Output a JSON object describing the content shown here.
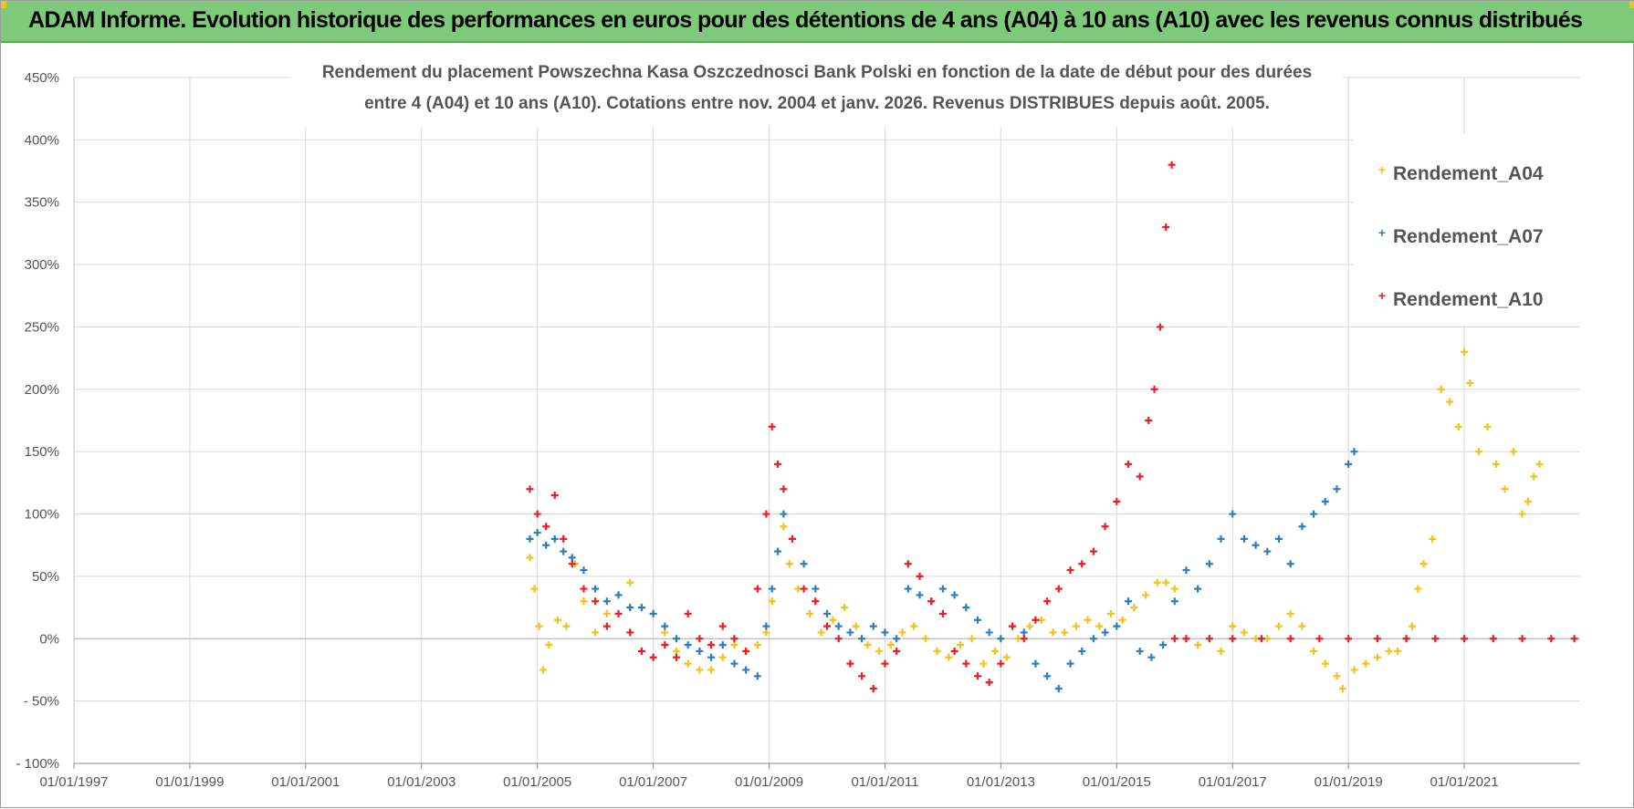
{
  "banner": {
    "title": "ADAM Informe. Evolution historique des performances en euros pour des détentions de 4 ans (A04) à 10 ans (A10) avec les revenus connus distribués"
  },
  "colors": {
    "banner": "#7fc97a",
    "A04": "#f5c21b",
    "A07": "#2f7cc0",
    "A10": "#ee1c25"
  },
  "chart_data": {
    "type": "scatter",
    "title_line1": "Rendement du placement Powszechna Kasa Oszczednosci Bank Polski en fonction de la date de début pour des durées",
    "title_line2": "entre 4 (A04) et 10 ans (A10).  Cotations entre nov. 2004 et janv. 2026. Revenus DISTRIBUES depuis août. 2005.",
    "x_unit": "year",
    "xlim": [
      1997.0,
      2023.0
    ],
    "ylim": [
      -100,
      450
    ],
    "y_ticks": [
      -100,
      -50,
      0,
      50,
      100,
      150,
      200,
      250,
      300,
      350,
      400,
      450
    ],
    "y_tick_labels": [
      "- 100%",
      "- 50%",
      "0%",
      "50%",
      "100%",
      "150%",
      "200%",
      "250%",
      "300%",
      "350%",
      "400%",
      "450%"
    ],
    "x_ticks": [
      1997,
      1999,
      2001,
      2003,
      2005,
      2007,
      2009,
      2011,
      2013,
      2015,
      2017,
      2019,
      2021
    ],
    "x_tick_labels": [
      "01/01/1997",
      "01/01/1999",
      "01/01/2001",
      "01/01/2003",
      "01/01/2005",
      "01/01/2007",
      "01/01/2009",
      "01/01/2011",
      "01/01/2013",
      "01/01/2015",
      "01/01/2017",
      "01/01/2019",
      "01/01/2021"
    ],
    "legend": [
      "Rendement_A04",
      "Rendement_A07",
      "Rendement_A10"
    ],
    "series": [
      {
        "name": "Rendement_A04",
        "x": [
          2004.87,
          2004.95,
          2005.03,
          2005.1,
          2005.2,
          2005.35,
          2005.5,
          2005.65,
          2005.8,
          2006.0,
          2006.2,
          2006.4,
          2006.6,
          2006.8,
          2007.0,
          2007.2,
          2007.4,
          2007.6,
          2007.8,
          2008.0,
          2008.2,
          2008.4,
          2008.6,
          2008.8,
          2008.95,
          2009.05,
          2009.15,
          2009.25,
          2009.35,
          2009.5,
          2009.7,
          2009.9,
          2010.1,
          2010.3,
          2010.5,
          2010.7,
          2010.9,
          2011.1,
          2011.3,
          2011.5,
          2011.7,
          2011.9,
          2012.1,
          2012.3,
          2012.5,
          2012.7,
          2012.9,
          2013.1,
          2013.3,
          2013.5,
          2013.7,
          2013.9,
          2014.1,
          2014.3,
          2014.5,
          2014.7,
          2014.9,
          2015.1,
          2015.3,
          2015.5,
          2015.7,
          2015.85,
          2016.0,
          2016.2,
          2016.4,
          2016.6,
          2016.8,
          2017.0,
          2017.2,
          2017.4,
          2017.6,
          2017.8,
          2018.0,
          2018.2,
          2018.4,
          2018.6,
          2018.8,
          2018.9,
          2019.1,
          2019.3,
          2019.5,
          2019.7,
          2019.85,
          2020.0,
          2020.1,
          2020.2,
          2020.3,
          2020.45,
          2020.6,
          2020.75,
          2020.9,
          2021.0,
          2021.1,
          2021.25,
          2021.4,
          2021.55,
          2021.7,
          2021.85,
          2022.0,
          2022.1,
          2022.2,
          2022.3
        ],
        "y": [
          65,
          40,
          10,
          -25,
          -5,
          15,
          10,
          60,
          30,
          5,
          20,
          35,
          45,
          25,
          20,
          5,
          -10,
          -20,
          -25,
          -25,
          -15,
          -5,
          -10,
          -5,
          5,
          30,
          70,
          90,
          60,
          40,
          20,
          5,
          15,
          25,
          10,
          -5,
          -10,
          -5,
          5,
          10,
          0,
          -10,
          -15,
          -5,
          0,
          -20,
          -10,
          -15,
          0,
          10,
          15,
          5,
          5,
          10,
          15,
          10,
          20,
          15,
          25,
          35,
          45,
          45,
          40,
          0,
          -5,
          0,
          -10,
          10,
          5,
          0,
          0,
          10,
          20,
          10,
          -10,
          -20,
          -30,
          -40,
          -25,
          -20,
          -15,
          -10,
          -10,
          0,
          10,
          40,
          60,
          80,
          200,
          190,
          170,
          230,
          205,
          150,
          170,
          140,
          120,
          150,
          100,
          110,
          130,
          140
        ]
      },
      {
        "name": "Rendement_A07",
        "x": [
          2004.87,
          2005.0,
          2005.15,
          2005.3,
          2005.45,
          2005.6,
          2005.8,
          2006.0,
          2006.2,
          2006.4,
          2006.6,
          2006.8,
          2007.0,
          2007.2,
          2007.4,
          2007.6,
          2007.8,
          2008.0,
          2008.2,
          2008.4,
          2008.6,
          2008.8,
          2008.95,
          2009.05,
          2009.15,
          2009.25,
          2009.4,
          2009.6,
          2009.8,
          2010.0,
          2010.2,
          2010.4,
          2010.6,
          2010.8,
          2011.0,
          2011.2,
          2011.4,
          2011.6,
          2011.8,
          2012.0,
          2012.2,
          2012.4,
          2012.6,
          2012.8,
          2013.0,
          2013.2,
          2013.4,
          2013.6,
          2013.8,
          2014.0,
          2014.2,
          2014.4,
          2014.6,
          2014.8,
          2015.0,
          2015.2,
          2015.4,
          2015.6,
          2015.8,
          2016.0,
          2016.2,
          2016.4,
          2016.6,
          2016.8,
          2017.0,
          2017.2,
          2017.4,
          2017.6,
          2017.8,
          2018.0,
          2018.2,
          2018.4,
          2018.6,
          2018.8,
          2019.0,
          2019.1
        ],
        "y": [
          80,
          85,
          75,
          80,
          70,
          65,
          55,
          40,
          30,
          35,
          25,
          25,
          20,
          10,
          0,
          -5,
          -10,
          -15,
          -5,
          -20,
          -25,
          -30,
          10,
          40,
          70,
          100,
          80,
          60,
          40,
          20,
          10,
          5,
          0,
          10,
          5,
          0,
          40,
          35,
          30,
          40,
          35,
          25,
          15,
          5,
          0,
          10,
          5,
          -20,
          -30,
          -40,
          -20,
          -10,
          0,
          5,
          10,
          30,
          -10,
          -15,
          -5,
          30,
          55,
          40,
          60,
          80,
          100,
          80,
          75,
          70,
          80,
          60,
          90,
          100,
          110,
          120,
          140,
          150
        ]
      },
      {
        "name": "Rendement_A10",
        "x": [
          2004.87,
          2005.0,
          2005.15,
          2005.3,
          2005.45,
          2005.6,
          2005.8,
          2006.0,
          2006.2,
          2006.4,
          2006.6,
          2006.8,
          2007.0,
          2007.2,
          2007.4,
          2007.6,
          2007.8,
          2008.0,
          2008.2,
          2008.4,
          2008.6,
          2008.8,
          2008.95,
          2009.05,
          2009.15,
          2009.25,
          2009.4,
          2009.6,
          2009.8,
          2010.0,
          2010.2,
          2010.4,
          2010.6,
          2010.8,
          2011.0,
          2011.2,
          2011.4,
          2011.6,
          2011.8,
          2012.0,
          2012.2,
          2012.4,
          2012.6,
          2012.8,
          2013.0,
          2013.2,
          2013.4,
          2013.6,
          2013.8,
          2014.0,
          2014.2,
          2014.4,
          2014.6,
          2014.8,
          2015.0,
          2015.2,
          2015.4,
          2015.55,
          2015.65,
          2015.75,
          2015.85,
          2015.95,
          2016.0,
          2016.2,
          2016.6,
          2017.0,
          2017.5,
          2018.0,
          2018.5,
          2019.0,
          2019.5,
          2020.0,
          2020.5,
          2021.0,
          2021.5,
          2022.0,
          2022.5,
          2022.9
        ],
        "y": [
          120,
          100,
          90,
          115,
          80,
          60,
          40,
          30,
          10,
          20,
          5,
          -10,
          -15,
          -5,
          -15,
          20,
          0,
          -5,
          10,
          0,
          -10,
          40,
          100,
          170,
          140,
          120,
          80,
          40,
          30,
          10,
          0,
          -20,
          -30,
          -40,
          -20,
          -10,
          60,
          50,
          30,
          20,
          -10,
          -20,
          -30,
          -35,
          -20,
          10,
          0,
          15,
          30,
          40,
          55,
          60,
          70,
          90,
          110,
          140,
          130,
          175,
          200,
          250,
          330,
          380,
          0,
          0,
          0,
          0,
          0,
          0,
          0,
          0,
          0,
          0,
          0,
          0,
          0,
          0,
          0,
          0
        ]
      }
    ]
  }
}
